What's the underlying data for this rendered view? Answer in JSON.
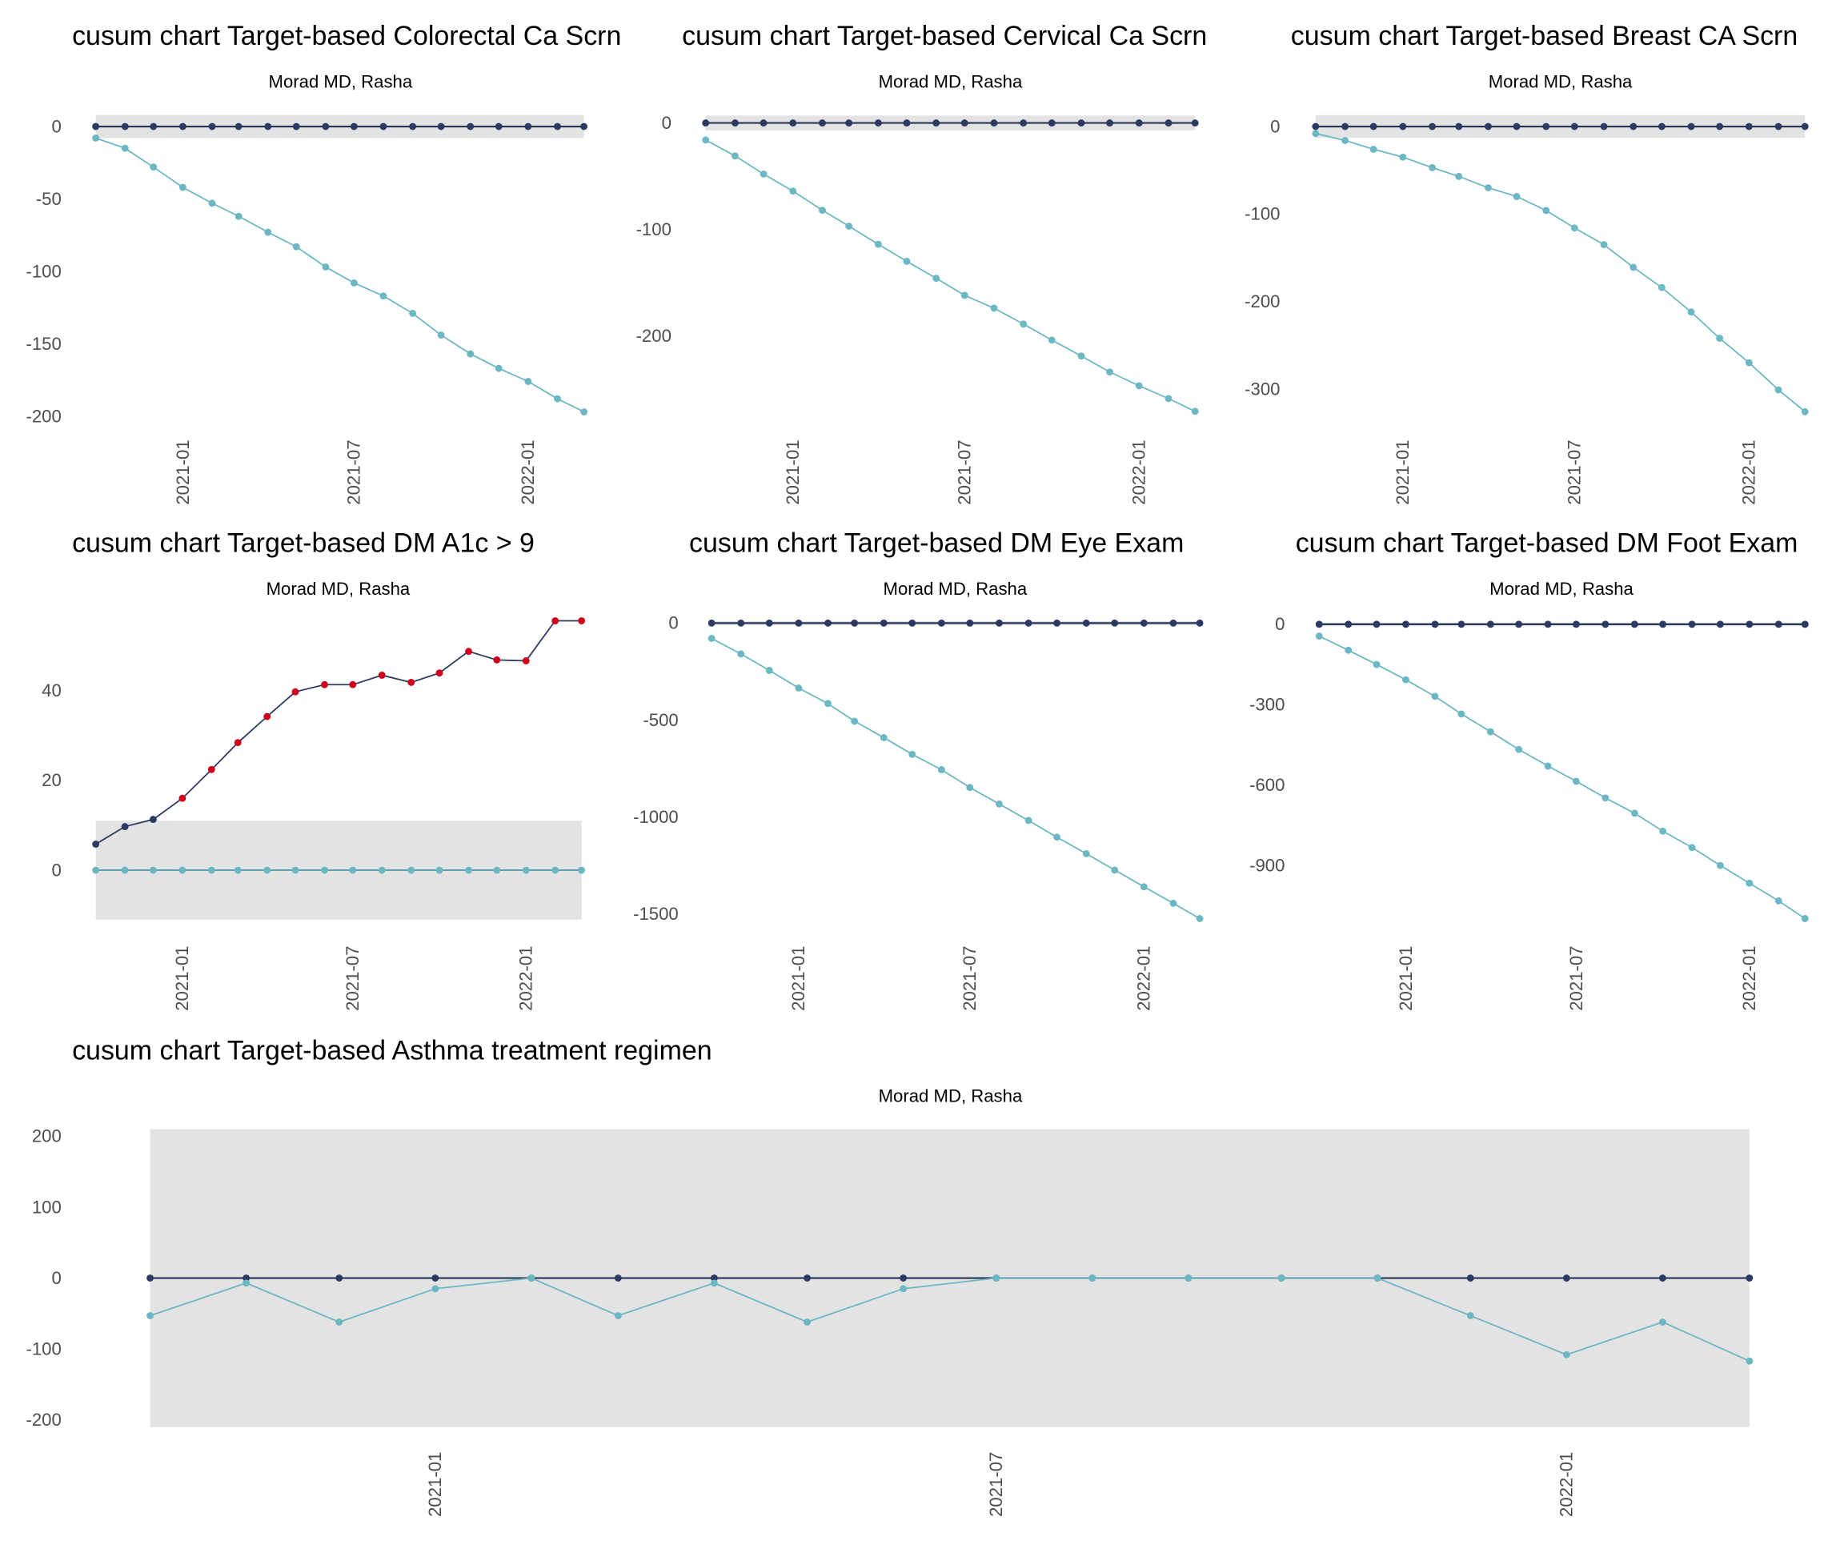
{
  "colors": {
    "upper": "#2b3a63",
    "lower": "#6cb7c4",
    "signal": "#d0021b",
    "band": "#e3e3e3",
    "zero_line": "#000000"
  },
  "chart_data": [
    {
      "type": "line",
      "title": "cusum chart Target-based  Colorectal Ca Scrn",
      "subtitle": "Morad MD, Rasha",
      "x": [
        "2020-10-01",
        "2020-11-01",
        "2020-12-01",
        "2021-01-01",
        "2021-02-01",
        "2021-03-01",
        "2021-04-01",
        "2021-05-01",
        "2021-06-01",
        "2021-07-01",
        "2021-08-01",
        "2021-09-01",
        "2021-10-01",
        "2021-11-01",
        "2021-12-01",
        "2022-01-01",
        "2022-02-01",
        "2022-03-01"
      ],
      "xticks": [
        "2021-01",
        "2021-07",
        "2022-01"
      ],
      "yticks": [
        0,
        -50,
        -100,
        -150,
        -200
      ],
      "band": [
        -8,
        8
      ],
      "upper": [
        0,
        0,
        0,
        0,
        0,
        0,
        0,
        0,
        0,
        0,
        0,
        0,
        0,
        0,
        0,
        0,
        0,
        0
      ],
      "lower": [
        -8,
        -15,
        -28,
        -42,
        -53,
        -62,
        -73,
        -83,
        -97,
        -108,
        -117,
        -129,
        -144,
        -157,
        -167,
        -176,
        -188,
        -197
      ],
      "upper_signal": []
    },
    {
      "type": "line",
      "title": "cusum chart Target-based  Cervical Ca Scrn",
      "subtitle": "Morad MD, Rasha",
      "x": [
        "2020-10-01",
        "2020-11-01",
        "2020-12-01",
        "2021-01-01",
        "2021-02-01",
        "2021-03-01",
        "2021-04-01",
        "2021-05-01",
        "2021-06-01",
        "2021-07-01",
        "2021-08-01",
        "2021-09-01",
        "2021-10-01",
        "2021-11-01",
        "2021-12-01",
        "2022-01-01",
        "2022-02-01",
        "2022-03-01"
      ],
      "xticks": [
        "2021-01",
        "2021-07",
        "2022-01"
      ],
      "yticks": [
        0,
        -100,
        -200
      ],
      "band": [
        -7,
        7
      ],
      "upper": [
        0,
        0,
        0,
        0,
        0,
        0,
        0,
        0,
        0,
        0,
        0,
        0,
        0,
        0,
        0,
        0,
        0,
        0
      ],
      "lower": [
        -16,
        -31,
        -48,
        -64,
        -82,
        -97,
        -114,
        -130,
        -146,
        -162,
        -174,
        -189,
        -204,
        -219,
        -234,
        -247,
        -259,
        -271
      ],
      "upper_signal": []
    },
    {
      "type": "line",
      "title": "cusum chart Target-based  Breast CA Scrn",
      "subtitle": "Morad MD, Rasha",
      "x": [
        "2020-10-01",
        "2020-11-01",
        "2020-12-01",
        "2021-01-01",
        "2021-02-01",
        "2021-03-01",
        "2021-04-01",
        "2021-05-01",
        "2021-06-01",
        "2021-07-01",
        "2021-08-01",
        "2021-09-01",
        "2021-10-01",
        "2021-11-01",
        "2021-12-01",
        "2022-01-01",
        "2022-02-01",
        "2022-03-01"
      ],
      "xticks": [
        "2021-01",
        "2021-07",
        "2022-01"
      ],
      "yticks": [
        0,
        -100,
        -200,
        -300
      ],
      "band": [
        -13,
        13
      ],
      "upper": [
        0,
        0,
        0,
        0,
        0,
        0,
        0,
        0,
        0,
        0,
        0,
        0,
        0,
        0,
        0,
        0,
        0,
        0
      ],
      "lower": [
        -8,
        -16,
        -26,
        -35,
        -47,
        -57,
        -70,
        -80,
        -96,
        -116,
        -135,
        -161,
        -184,
        -212,
        -242,
        -270,
        -301,
        -326
      ],
      "upper_signal": []
    },
    {
      "type": "line",
      "title": "cusum chart Target-based  DM A1c > 9",
      "subtitle": "Morad MD, Rasha",
      "x": [
        "2020-10-01",
        "2020-11-01",
        "2020-12-01",
        "2021-01-01",
        "2021-02-01",
        "2021-03-01",
        "2021-04-01",
        "2021-05-01",
        "2021-06-01",
        "2021-07-01",
        "2021-08-01",
        "2021-09-01",
        "2021-10-01",
        "2021-11-01",
        "2021-12-01",
        "2022-01-01",
        "2022-02-01",
        "2022-03-01"
      ],
      "xticks": [
        "2021-01",
        "2021-07",
        "2022-01"
      ],
      "yticks": [
        0,
        20,
        40
      ],
      "band": [
        -11,
        11
      ],
      "upper": [
        5.8,
        9.7,
        11.3,
        16,
        22.4,
        28.4,
        34.2,
        39.7,
        41.3,
        41.3,
        43.4,
        41.8,
        43.9,
        48.7,
        46.8,
        46.6,
        55.5,
        55.5
      ],
      "lower": [
        0,
        0,
        0,
        0,
        0,
        0,
        0,
        0,
        0,
        0,
        0,
        0,
        0,
        0,
        0,
        0,
        0,
        0
      ],
      "upper_signal": [
        3,
        4,
        5,
        6,
        7,
        8,
        9,
        10,
        11,
        12,
        13,
        14,
        15,
        16,
        17
      ]
    },
    {
      "type": "line",
      "title": "cusum chart Target-based  DM Eye Exam",
      "subtitle": "Morad MD, Rasha",
      "x": [
        "2020-10-01",
        "2020-11-01",
        "2020-12-01",
        "2021-01-01",
        "2021-02-01",
        "2021-03-01",
        "2021-04-01",
        "2021-05-01",
        "2021-06-01",
        "2021-07-01",
        "2021-08-01",
        "2021-09-01",
        "2021-10-01",
        "2021-11-01",
        "2021-12-01",
        "2022-01-01",
        "2022-02-01",
        "2022-03-01"
      ],
      "xticks": [
        "2021-01",
        "2021-07",
        "2022-01"
      ],
      "yticks": [
        0,
        -500,
        -1000,
        -1500
      ],
      "band": [
        -10,
        10
      ],
      "upper": [
        0,
        0,
        0,
        0,
        0,
        0,
        0,
        0,
        0,
        0,
        0,
        0,
        0,
        0,
        0,
        0,
        0,
        0
      ],
      "lower": [
        -79,
        -159,
        -244,
        -335,
        -415,
        -506,
        -591,
        -677,
        -756,
        -848,
        -933,
        -1018,
        -1104,
        -1189,
        -1274,
        -1360,
        -1445,
        -1524
      ],
      "upper_signal": []
    },
    {
      "type": "line",
      "title": "cusum chart Target-based  DM Foot Exam",
      "subtitle": "Morad MD, Rasha",
      "x": [
        "2020-10-01",
        "2020-11-01",
        "2020-12-01",
        "2021-01-01",
        "2021-02-01",
        "2021-03-01",
        "2021-04-01",
        "2021-05-01",
        "2021-06-01",
        "2021-07-01",
        "2021-08-01",
        "2021-09-01",
        "2021-10-01",
        "2021-11-01",
        "2021-12-01",
        "2022-01-01",
        "2022-02-01",
        "2022-03-01"
      ],
      "xticks": [
        "2021-01",
        "2021-07",
        "2022-01"
      ],
      "yticks": [
        0,
        -300,
        -600,
        -900
      ],
      "band": [
        -6,
        6
      ],
      "upper": [
        0,
        0,
        0,
        0,
        0,
        0,
        0,
        0,
        0,
        0,
        0,
        0,
        0,
        0,
        0,
        0,
        0,
        0
      ],
      "lower": [
        -44,
        -97,
        -150,
        -207,
        -269,
        -335,
        -401,
        -467,
        -529,
        -586,
        -648,
        -705,
        -772,
        -833,
        -900,
        -966,
        -1032,
        -1098
      ],
      "upper_signal": []
    },
    {
      "type": "line",
      "title": "cusum chart Target-based  Asthma treatment regimen",
      "subtitle": "Morad MD, Rasha",
      "x": [
        "2020-10-01",
        "2020-11-01",
        "2020-12-01",
        "2021-01-01",
        "2021-02-01",
        "2021-03-01",
        "2021-04-01",
        "2021-05-01",
        "2021-06-01",
        "2021-07-01",
        "2021-08-01",
        "2021-09-01",
        "2021-10-01",
        "2021-11-01",
        "2021-12-01",
        "2022-01-01",
        "2022-02-01",
        "2022-03-01"
      ],
      "xticks": [
        "2021-01",
        "2021-07",
        "2022-01"
      ],
      "yticks": [
        200,
        100,
        0,
        -100,
        -200
      ],
      "band": [
        -210,
        210
      ],
      "upper": [
        0,
        0,
        0,
        0,
        0,
        0,
        0,
        0,
        0,
        0,
        0,
        0,
        0,
        0,
        0,
        0,
        0,
        0
      ],
      "lower": [
        -53,
        -7,
        -62,
        -15,
        0,
        -53,
        -7,
        -62,
        -15,
        0,
        0,
        0,
        0,
        0,
        -53,
        -108,
        -62,
        -117
      ],
      "upper_signal": []
    }
  ]
}
